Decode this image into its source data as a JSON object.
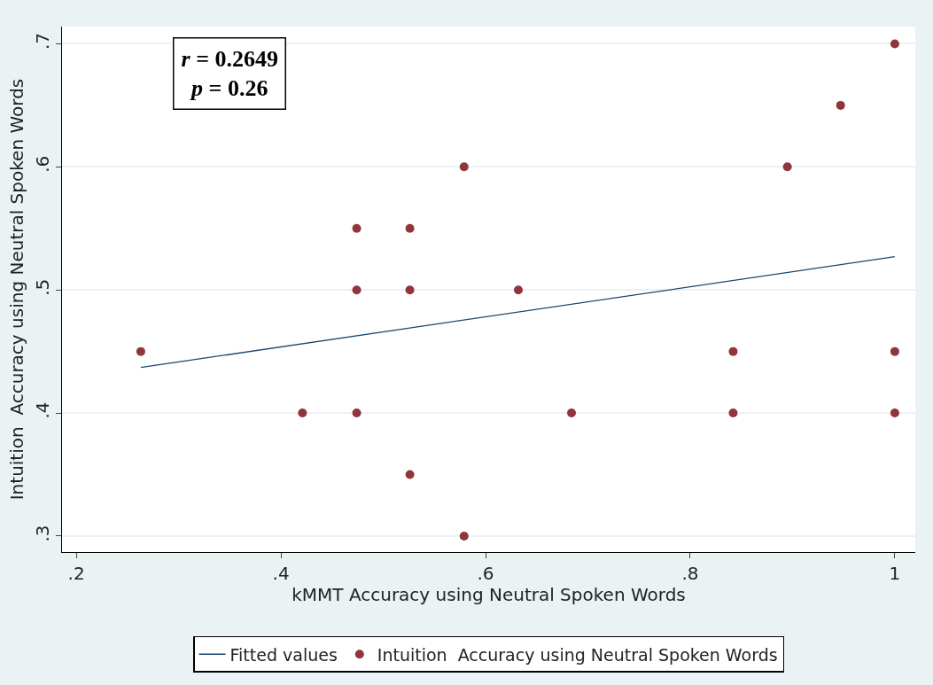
{
  "chart_data": {
    "type": "scatter",
    "xlabel": "kMMT Accuracy using Neutral Spoken Words",
    "ylabel": "Intuition  Accuracy using Neutral Spoken Words",
    "xlim": [
      0.186,
      1.02
    ],
    "ylim": [
      0.287,
      0.714
    ],
    "xticks": [
      {
        "value": 0.2,
        "label": ".2"
      },
      {
        "value": 0.4,
        "label": ".4"
      },
      {
        "value": 0.6,
        "label": ".6"
      },
      {
        "value": 0.8,
        "label": ".8"
      },
      1
    ],
    "yticks": [
      {
        "value": 0.3,
        "label": ".3"
      },
      {
        "value": 0.4,
        "label": ".4"
      },
      {
        "value": 0.5,
        "label": ".5"
      },
      {
        "value": 0.6,
        "label": ".6"
      },
      {
        "value": 0.7,
        "label": ".7"
      }
    ],
    "grid": "y",
    "legend": "bottom",
    "annotations": [
      "r = 0.2649\np = 0.26"
    ],
    "series": [
      {
        "name": "Fitted values",
        "type": "line",
        "color": "#1a476f",
        "marker": "none",
        "x": [
          0.263,
          1.0
        ],
        "values": [
          0.437,
          0.527
        ]
      },
      {
        "name": "Intuition  Accuracy using Neutral Spoken Words",
        "color": "#90353b",
        "marker": "circle",
        "x": [
          0.263,
          0.421,
          0.474,
          0.474,
          0.474,
          0.526,
          0.526,
          0.526,
          0.579,
          0.579,
          0.632,
          0.684,
          0.842,
          0.842,
          0.895,
          0.947,
          1.0,
          1.0,
          1.0
        ],
        "values": [
          0.45,
          0.4,
          0.55,
          0.5,
          0.4,
          0.55,
          0.5,
          0.35,
          0.6,
          0.3,
          0.5,
          0.4,
          0.45,
          0.4,
          0.6,
          0.65,
          0.7,
          0.45,
          0.4
        ]
      }
    ]
  }
}
